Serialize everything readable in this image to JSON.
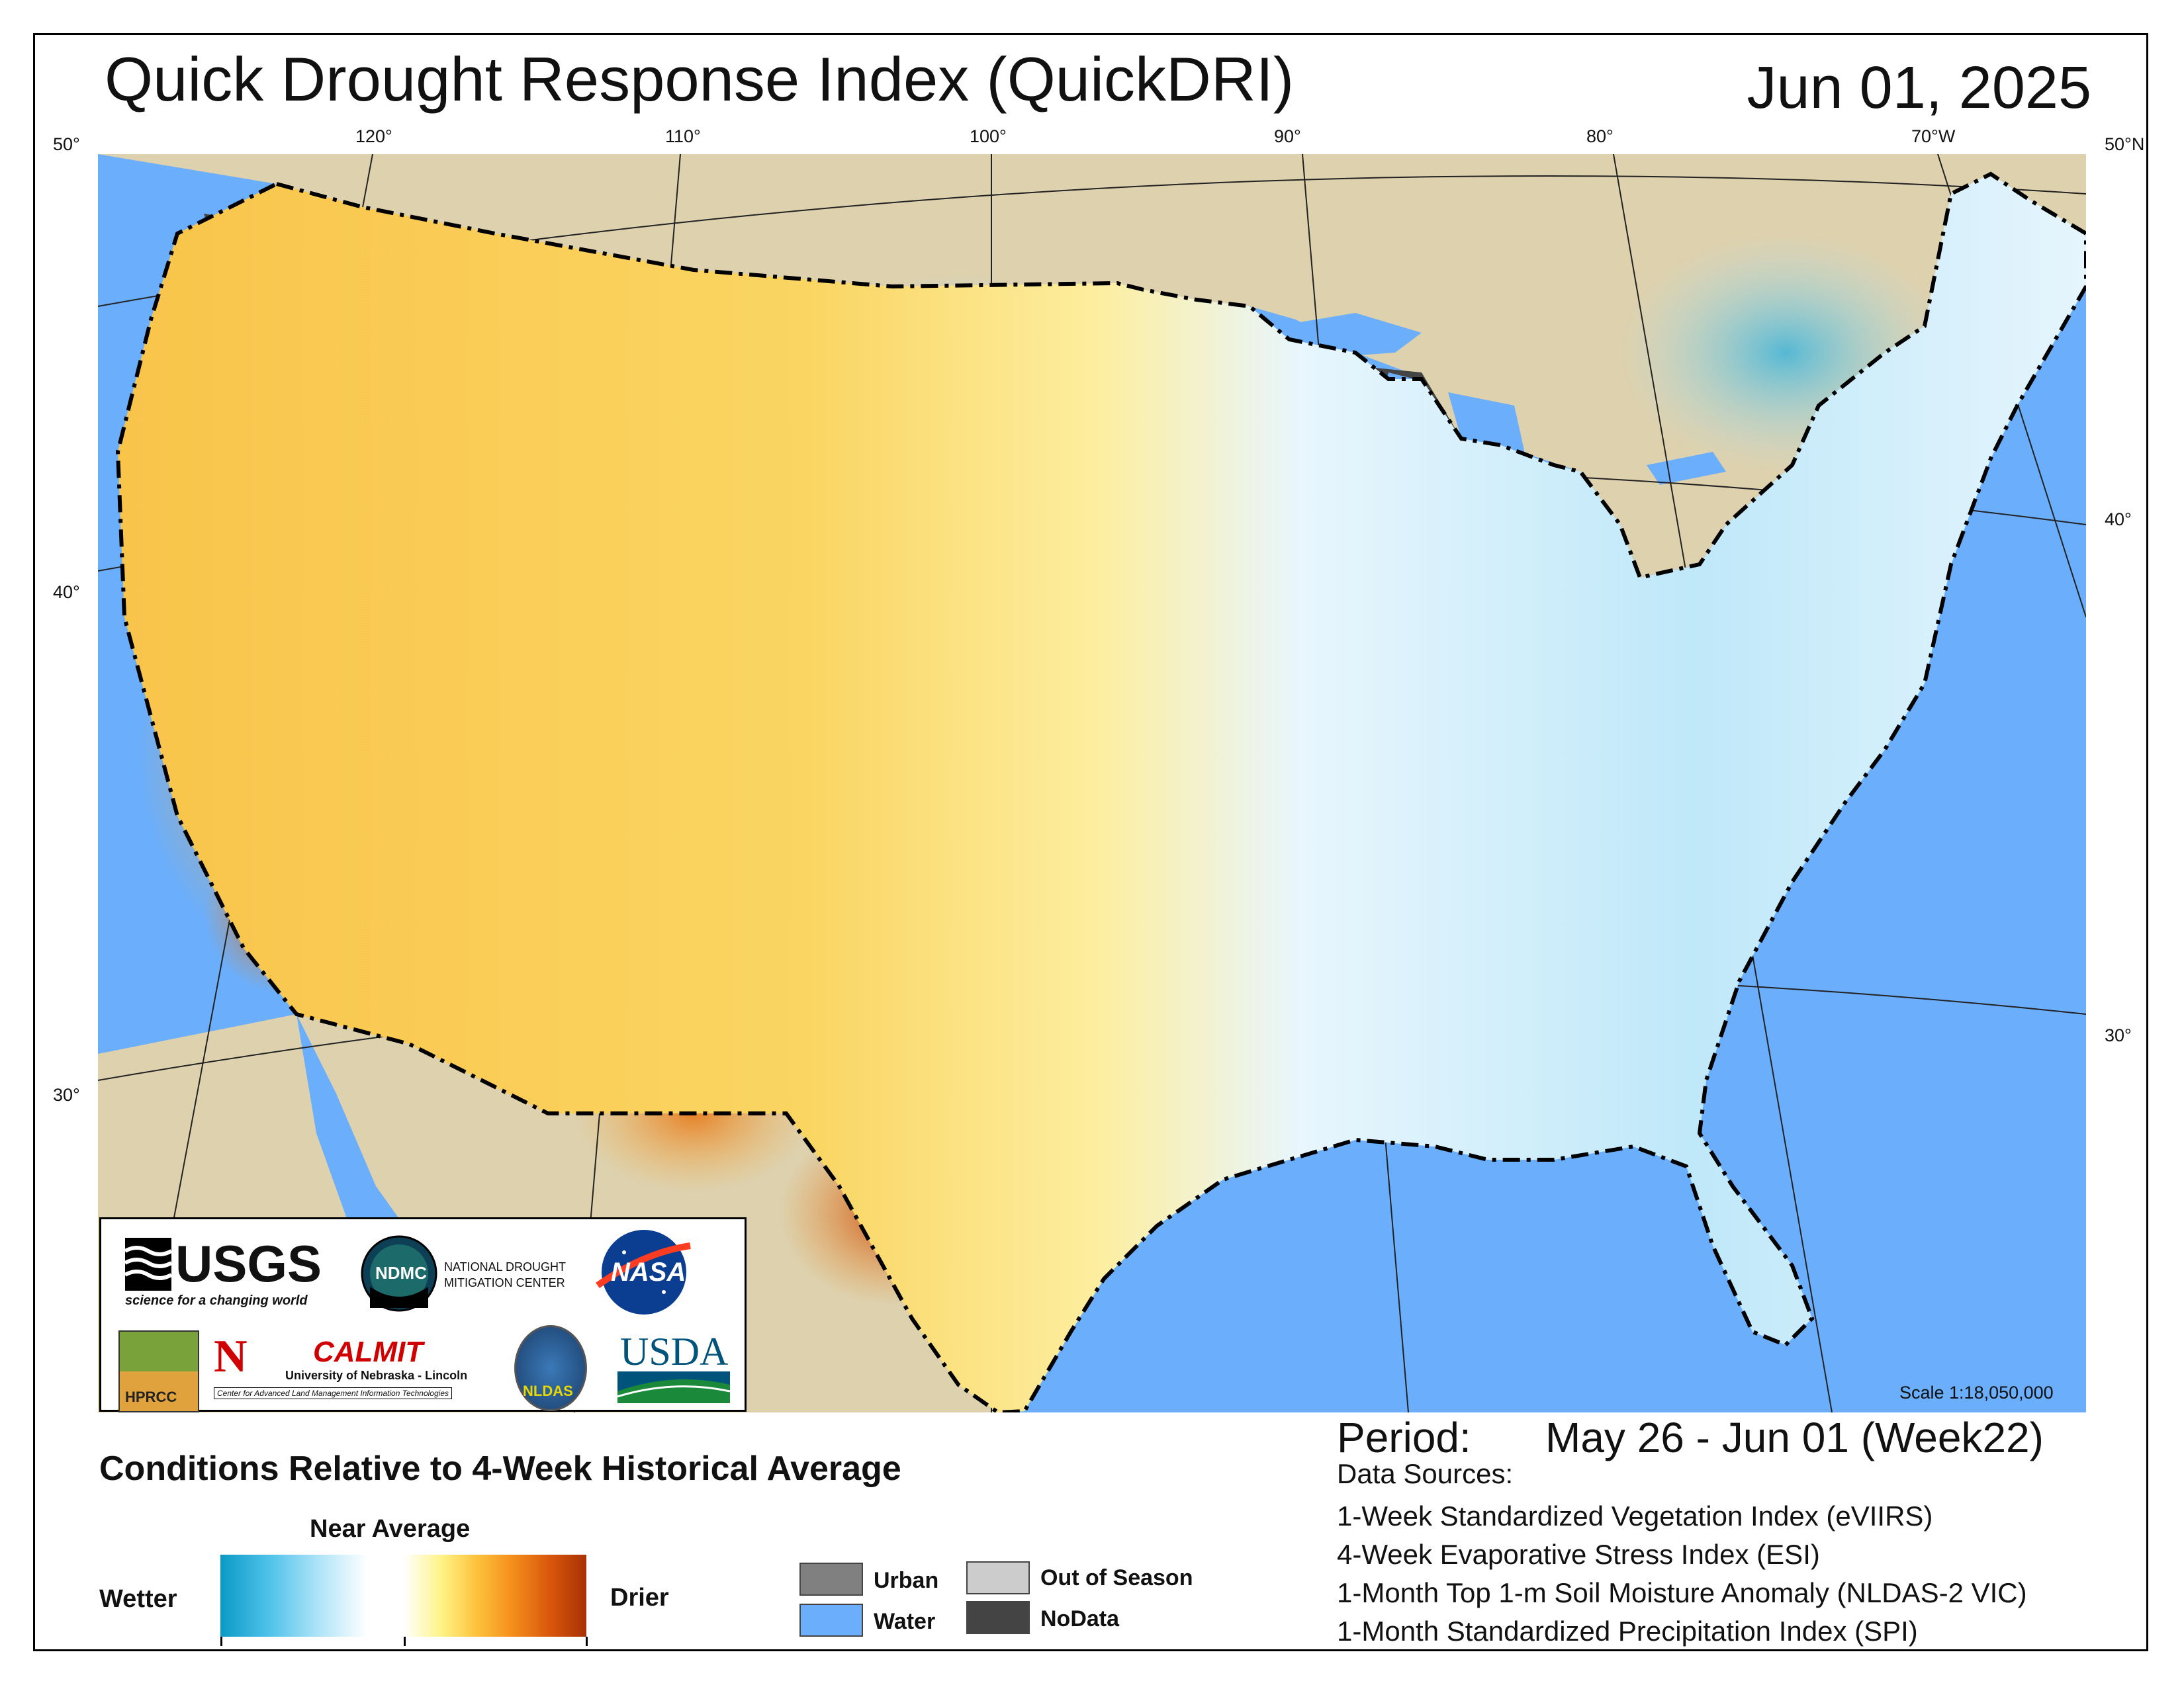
{
  "header": {
    "title": "Quick Drought Response Index (QuickDRI)",
    "date": "Jun 01, 2025"
  },
  "graticule": {
    "top": [
      "120°",
      "110°",
      "100°",
      "90°",
      "80°",
      "70°W"
    ],
    "left": [
      "50°",
      "40°",
      "30°"
    ],
    "right": [
      "50°N",
      "40°",
      "30°"
    ]
  },
  "map": {
    "scale": "Scale 1:18,050,000",
    "colors": {
      "water": "#6aaefc",
      "land_outside": "#ddd1ae",
      "nodata": "#444444",
      "urban": "#808080",
      "out_of_season": "#cccccc",
      "wet_dark": "#0a9ac5",
      "wet_light": "#aee4f8",
      "dry_light": "#fff48a",
      "dry_mid": "#f48d1a",
      "dry_dark": "#a83205"
    }
  },
  "logos": {
    "usgs": "USGS",
    "usgs_tagline": "science for a changing world",
    "ndmc": "NDMC",
    "ndmc_name_1": "NATIONAL DROUGHT",
    "ndmc_name_2": "MITIGATION CENTER",
    "nasa": "NASA",
    "hprcc": "HPRCC",
    "calmit": "CALMIT",
    "calmit_univ": "University of Nebraska - Lincoln",
    "calmit_center": "Center for Advanced Land Management Information Technologies",
    "nldas": "NLDAS",
    "usda": "USDA"
  },
  "legend": {
    "subtitle": "Conditions Relative to 4-Week Historical Average",
    "near_average": "Near Average",
    "wetter": "Wetter",
    "drier": "Drier",
    "urban": "Urban",
    "water": "Water",
    "out_of_season": "Out of Season",
    "nodata": "NoData"
  },
  "info": {
    "period_label": "Period:",
    "period_value": "May 26 - Jun 01 (Week22)",
    "sources_label": "Data Sources:",
    "sources": [
      "1-Week Standardized Vegetation Index (eVIIRS)",
      "4-Week Evaporative Stress Index (ESI)",
      "1-Month Top 1-m Soil Moisture Anomaly (NLDAS-2 VIC)",
      "1-Month Standardized Precipitation Index (SPI)"
    ]
  }
}
